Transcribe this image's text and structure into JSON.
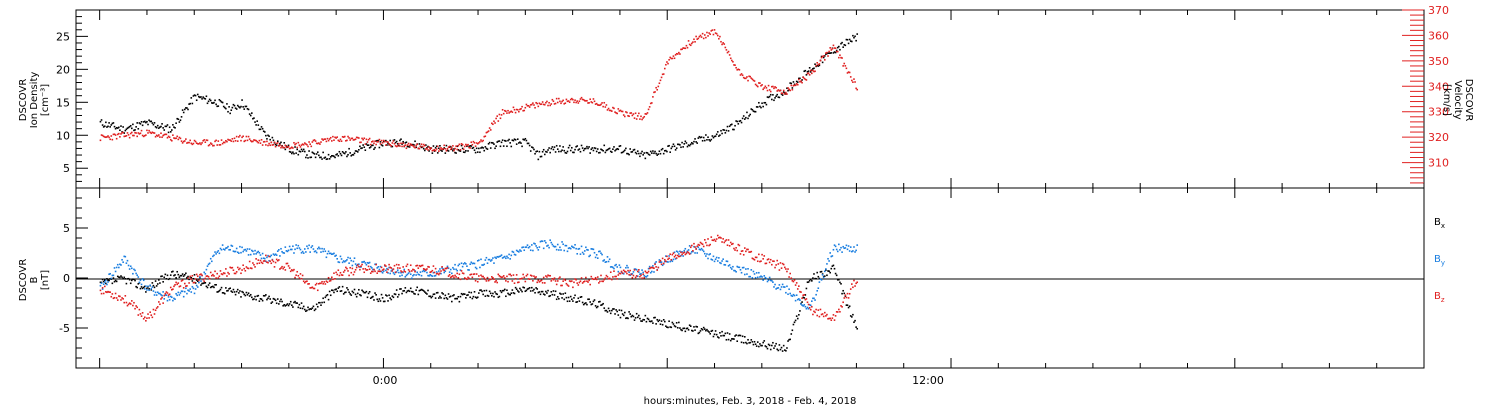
{
  "chart_data": [
    {
      "type": "scatter",
      "panel": "top",
      "ylabel_left": [
        "DSCOVR",
        "Ion Density",
        "[cm⁻³]"
      ],
      "ylabel_right": [
        "DSCOVR",
        "Velocity",
        "[km/s]"
      ],
      "yticks_left": [
        "25",
        "20",
        "15",
        "10",
        "5"
      ],
      "yticks_right": [
        "370",
        "360",
        "350",
        "340",
        "330",
        "320",
        "310"
      ],
      "ylim_left": [
        2,
        29
      ],
      "ylim_right": [
        300,
        370
      ],
      "colors": {
        "density": "#000000",
        "velocity": "#e02020"
      },
      "series": [
        {
          "name": "Ion Density",
          "axis": "left",
          "x": [
            -12,
            -11,
            -10,
            -9,
            -8,
            -7,
            -6.5,
            -6,
            -5,
            -4,
            -3,
            -2,
            -1,
            0,
            1,
            2,
            3,
            4,
            5,
            6,
            6.5,
            7,
            8,
            9,
            10,
            11,
            12,
            13,
            14,
            15,
            16,
            17,
            18,
            19,
            20
          ],
          "y": [
            12,
            11,
            12,
            11,
            16,
            15,
            14,
            15,
            10,
            8,
            7,
            7,
            8,
            9,
            9,
            8,
            8,
            8,
            9,
            9,
            7,
            8,
            8,
            8,
            8,
            7,
            8,
            9,
            10,
            12,
            15,
            17,
            20,
            23,
            25
          ]
        },
        {
          "name": "Velocity",
          "axis": "right",
          "x": [
            -12,
            -11,
            -10,
            -9,
            -8,
            -7,
            -6,
            -5,
            -4,
            -3,
            -2,
            -1,
            0,
            1,
            2,
            3,
            4,
            5,
            6,
            7,
            8,
            9,
            10,
            11,
            12,
            13,
            14,
            15,
            16,
            17,
            18,
            19,
            20
          ],
          "y": [
            320,
            321,
            322,
            320,
            318,
            318,
            320,
            318,
            317,
            318,
            320,
            319,
            318,
            317,
            316,
            316,
            318,
            330,
            332,
            334,
            335,
            334,
            330,
            328,
            350,
            358,
            362,
            346,
            340,
            338,
            345,
            356,
            340
          ]
        }
      ]
    },
    {
      "type": "scatter",
      "panel": "bottom",
      "ylabel": [
        "DSCOVR",
        "B",
        "[nT]"
      ],
      "yticks": [
        "5",
        "0",
        "-5"
      ],
      "ylim": [
        -9,
        9
      ],
      "zero_line": true,
      "legend_position": "right",
      "colors": {
        "Bx": "#000000",
        "By": "#1a7ee0",
        "Bz": "#e02020"
      },
      "legend_labels": {
        "Bx": "B",
        "By": "B",
        "Bz": "B"
      },
      "legend_subscripts": {
        "Bx": "x",
        "By": "y",
        "Bz": "z"
      },
      "series": [
        {
          "name": "Bx",
          "x": [
            -12,
            -11,
            -10,
            -9,
            -8,
            -7,
            -6,
            -5,
            -4,
            -3,
            -2,
            -1,
            0,
            1,
            2,
            3,
            4,
            5,
            6,
            7,
            8,
            9,
            10,
            11,
            12,
            13,
            14,
            15,
            16,
            17,
            18,
            19,
            20
          ],
          "y": [
            -0.5,
            0,
            -1,
            0.5,
            0,
            -1,
            -1.5,
            -2,
            -2.5,
            -3,
            -1,
            -1.5,
            -2,
            -1,
            -1.5,
            -2,
            -1.5,
            -1.5,
            -1,
            -1.5,
            -2,
            -2.5,
            -3.5,
            -4,
            -4.5,
            -5,
            -5.5,
            -6,
            -6.5,
            -7,
            0,
            1,
            -5
          ]
        },
        {
          "name": "By",
          "x": [
            -12,
            -11,
            -10,
            -9,
            -8,
            -7,
            -6,
            -5,
            -4,
            -3,
            -2,
            -1,
            0,
            1,
            2,
            3,
            4,
            5,
            6,
            7,
            8,
            9,
            10,
            11,
            12,
            13,
            14,
            15,
            16,
            17,
            18,
            19,
            20
          ],
          "y": [
            -1,
            2,
            -1,
            -2,
            -1,
            3,
            3,
            2,
            3,
            3,
            2,
            1.5,
            1,
            0.5,
            0.5,
            1,
            1.5,
            2,
            3,
            3.5,
            3,
            2.5,
            1,
            0.5,
            2,
            3,
            2,
            1,
            0,
            -1,
            -3,
            3,
            3
          ]
        },
        {
          "name": "Bz",
          "x": [
            -12,
            -11,
            -10,
            -9,
            -8,
            -7,
            -6,
            -5,
            -4,
            -3,
            -2,
            -1,
            0,
            1,
            2,
            3,
            4,
            5,
            6,
            7,
            8,
            9,
            10,
            11,
            12,
            13,
            14,
            15,
            16,
            17,
            18,
            19,
            20
          ],
          "y": [
            -1,
            -2,
            -4,
            -1,
            0,
            0.5,
            1,
            2,
            1,
            -1,
            0.5,
            1,
            1,
            1,
            1,
            0.5,
            0,
            0,
            0,
            0,
            -0.5,
            0,
            0.5,
            0.5,
            2,
            3,
            4,
            3,
            2,
            1,
            -3,
            -4,
            0
          ]
        }
      ]
    }
  ],
  "xaxis": {
    "tick_labels": [
      "0:00",
      "12:00"
    ],
    "label": "hours:minutes, Feb.  3, 2018 - Feb.  4, 2018",
    "xlim": [
      -13,
      44
    ]
  }
}
